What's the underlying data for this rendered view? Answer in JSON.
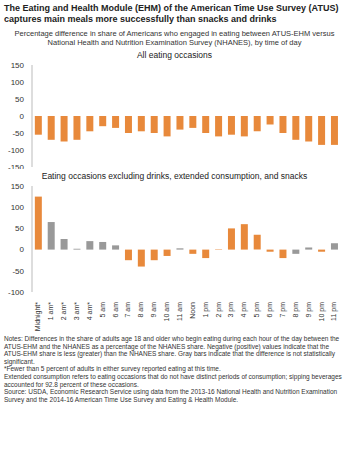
{
  "title": "The Eating and Health Module (EHM) of the American Time Use Survey (ATUS) captures main meals more successfully than snacks and drinks",
  "subtitle": "Percentage difference in share of Americans who engaged in eating between ATUS-EHM versus National Health and Nutrition Examination Survey (NHANES), by time of day",
  "notes": [
    "Notes: Differences in the share of adults age 18 and older who begin eating during each hour of the day between the ATUS-EHM and the NHANES as a percentage of the NHANES share. Negative (positive) values indicate that the ATUS-EHM share is less (greater) than the NHANES share. Gray bars indicate that the difference is not statistically significant.",
    "*Fewer than 5 percent of adults in either survey reported eating at this time.",
    "Extended consumption refers to eating occasions that do not have distinct periods of consumption; sipping beverages accounted for 92.8 percent of these occasions.",
    "Source: USDA, Economic Research Service using data from the 2013-16 National Health and Nutrition Examination Survey and the 2014-16 American Time Use Survey and Eating & Health Module."
  ],
  "chart_data": [
    {
      "type": "bar",
      "title": "All eating occasions",
      "categories": [
        "Midnight*",
        "1 am*",
        "2 am*",
        "3 am*",
        "4 am*",
        "5 am",
        "6 am",
        "7 am",
        "8 am",
        "9 am",
        "10 am",
        "11 am",
        "Noon",
        "1 pm",
        "2 pm",
        "3 pm",
        "4 pm",
        "5 pm",
        "6 pm",
        "7 pm",
        "8 pm",
        "9 pm",
        "10 pm",
        "11 pm"
      ],
      "values": [
        -55,
        -70,
        -75,
        -70,
        -45,
        -30,
        -35,
        -50,
        -45,
        -50,
        -60,
        -40,
        -35,
        -50,
        -60,
        -55,
        -60,
        -45,
        -25,
        -50,
        -70,
        -75,
        -85,
        -85
      ],
      "color": "#e8893b",
      "ylim": [
        -150,
        150
      ],
      "yticks": [
        -150,
        -100,
        -50,
        0,
        50,
        100,
        150
      ],
      "tick_labels": "y"
    },
    {
      "type": "bar",
      "title": "Eating occasions excluding drinks, extended consumption, and snacks",
      "categories": [
        "Midnight*",
        "1 am*",
        "2 am*",
        "3 am*",
        "4 am*",
        "5 am",
        "6 am",
        "7 am",
        "8 am",
        "9 am",
        "10 am",
        "11 am",
        "Noon",
        "1 pm",
        "2 pm",
        "3 pm",
        "4 pm",
        "5 pm",
        "6 pm",
        "7 pm",
        "8 pm",
        "9 pm",
        "10 pm",
        "11 pm"
      ],
      "values": [
        125,
        65,
        25,
        2,
        20,
        18,
        10,
        -25,
        -40,
        -25,
        -15,
        3,
        -10,
        -20,
        1,
        50,
        60,
        35,
        -5,
        -20,
        -10,
        5,
        -5,
        15
      ],
      "colors": [
        "#e8893b",
        "#999999",
        "#999999",
        "#999999",
        "#999999",
        "#999999",
        "#999999",
        "#e8893b",
        "#e8893b",
        "#e8893b",
        "#e8893b",
        "#999999",
        "#e8893b",
        "#e8893b",
        "#e8893b",
        "#e8893b",
        "#e8893b",
        "#e8893b",
        "#e8893b",
        "#e8893b",
        "#999999",
        "#999999",
        "#e8893b",
        "#999999"
      ],
      "ylim": [
        -100,
        150
      ],
      "yticks": [
        -100,
        -50,
        0,
        50,
        100,
        150
      ]
    }
  ]
}
